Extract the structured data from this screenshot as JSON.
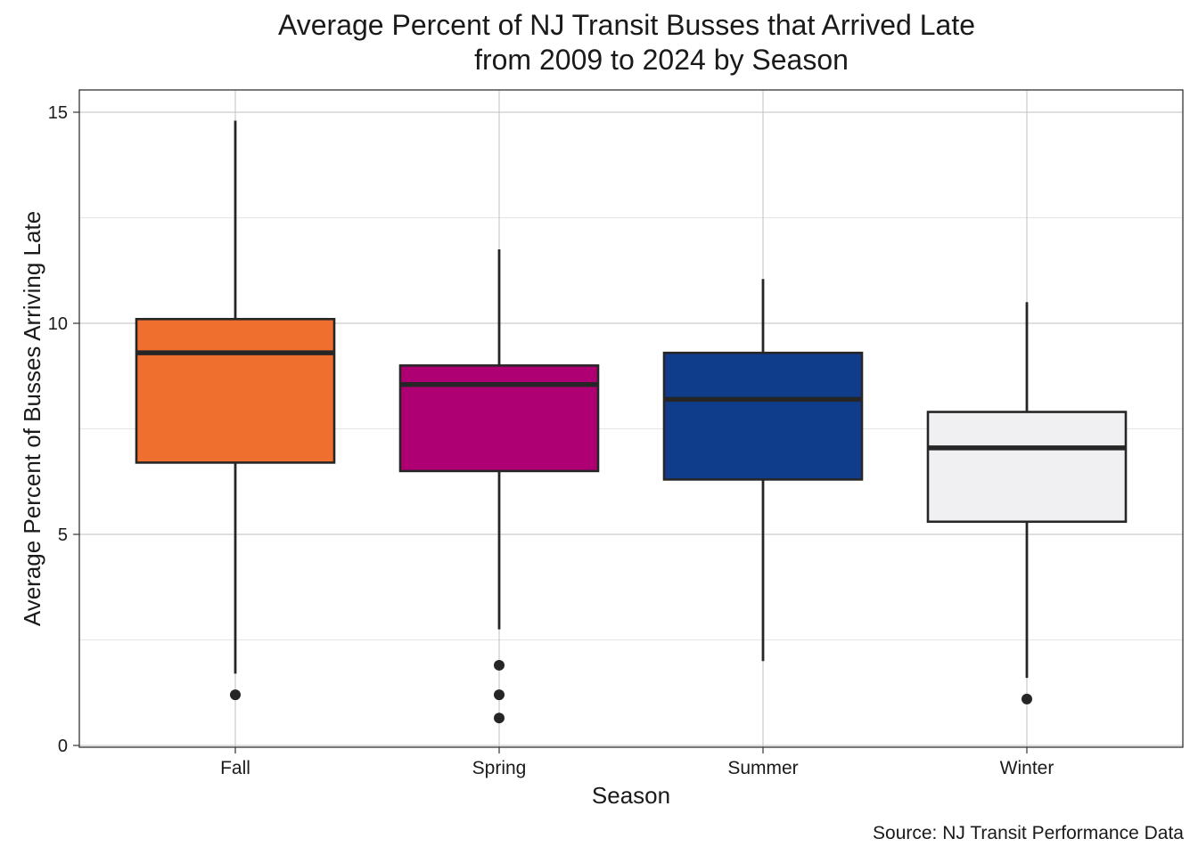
{
  "chart_data": {
    "type": "boxplot",
    "title_lines": [
      "Average Percent of NJ Transit Busses that Arrived Late",
      "from 2009 to 2024 by Season"
    ],
    "xlabel": "Season",
    "ylabel": "Average Percent of Busses Arriving Late",
    "caption": "Source: NJ Transit Performance Data",
    "ylim": [
      0,
      15.5
    ],
    "yticks": [
      0,
      5,
      10,
      15
    ],
    "grid": true,
    "categories": [
      "Fall",
      "Spring",
      "Summer",
      "Winter"
    ],
    "boxes": [
      {
        "category": "Fall",
        "color": "#EF6F2E",
        "whisker_low": 1.7,
        "q1": 6.7,
        "median": 9.3,
        "q3": 10.1,
        "whisker_high": 14.8,
        "outliers": [
          1.2
        ]
      },
      {
        "category": "Spring",
        "color": "#AF0073",
        "whisker_low": 2.75,
        "q1": 6.5,
        "median": 8.55,
        "q3": 9.0,
        "whisker_high": 11.75,
        "outliers": [
          1.9,
          1.2,
          0.65
        ]
      },
      {
        "category": "Summer",
        "color": "#0F3D8C",
        "whisker_low": 2.0,
        "q1": 6.3,
        "median": 8.2,
        "q3": 9.3,
        "whisker_high": 11.05,
        "outliers": []
      },
      {
        "category": "Winter",
        "color": "#F0EFF1",
        "whisker_low": 1.6,
        "q1": 5.3,
        "median": 7.05,
        "q3": 7.9,
        "whisker_high": 10.5,
        "outliers": [
          1.1
        ]
      }
    ]
  }
}
